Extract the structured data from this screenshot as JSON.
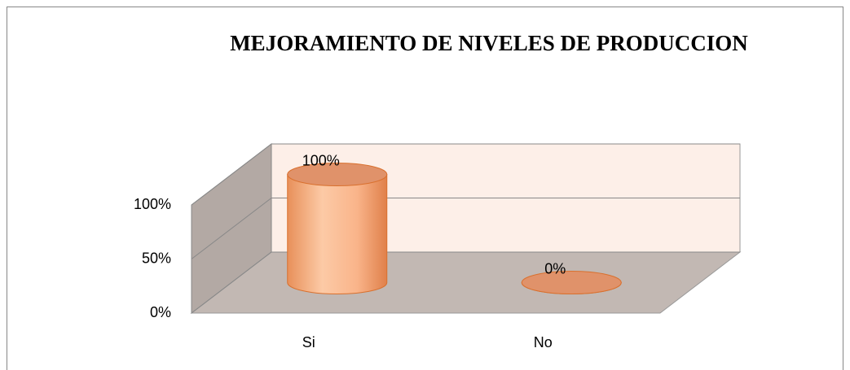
{
  "chart_data": {
    "type": "bar3d",
    "title": "MEJORAMIENTO DE NIVELES DE PRODUCCION",
    "categories": [
      "Si",
      "No"
    ],
    "values": [
      100,
      0
    ],
    "value_labels": [
      "100%",
      "0%"
    ],
    "color": "#f9b48a",
    "ylim": [
      0,
      100
    ],
    "yticks": [
      {
        "value": 0,
        "label": "0%"
      },
      {
        "value": 50,
        "label": "50%"
      },
      {
        "value": 100,
        "label": "100%"
      }
    ],
    "grid": true
  }
}
